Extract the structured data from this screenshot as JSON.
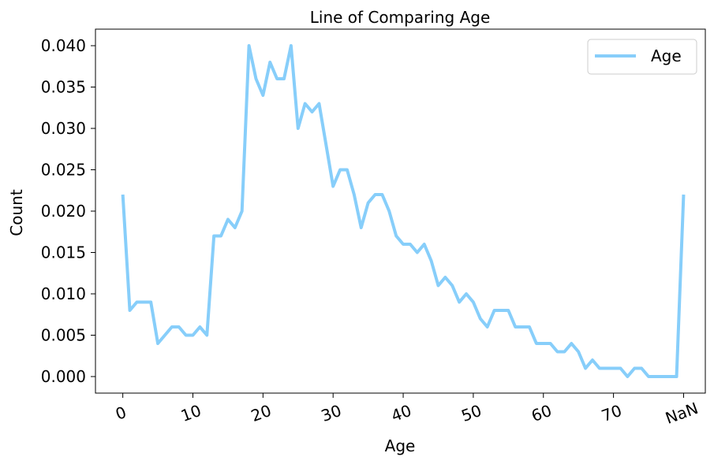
{
  "chart_data": {
    "type": "line",
    "title": "Line of Comparing Age",
    "xlabel": "Age",
    "ylabel": "Count",
    "x_ticks": [
      "0",
      "10",
      "20",
      "30",
      "40",
      "50",
      "60",
      "70",
      "NaN"
    ],
    "y_ticks": [
      "0.000",
      "0.005",
      "0.010",
      "0.015",
      "0.020",
      "0.025",
      "0.030",
      "0.035",
      "0.040"
    ],
    "ylim": [
      -0.002,
      0.042
    ],
    "xlim": [
      -3.9,
      83.1
    ],
    "legend_position": "top-right",
    "grid": false,
    "series": [
      {
        "name": "Age",
        "color": "#87CEFA",
        "x": [
          0,
          1,
          2,
          3,
          4,
          5,
          6,
          7,
          8,
          9,
          10,
          11,
          12,
          13,
          14,
          15,
          16,
          17,
          18,
          19,
          20,
          21,
          22,
          23,
          24,
          25,
          26,
          27,
          28,
          29,
          30,
          31,
          32,
          33,
          34,
          35,
          36,
          37,
          38,
          39,
          40,
          41,
          42,
          43,
          44,
          45,
          46,
          47,
          48,
          49,
          50,
          51,
          52,
          53,
          54,
          55,
          56,
          57,
          58,
          59,
          60,
          61,
          62,
          63,
          64,
          65,
          66,
          67,
          68,
          69,
          70,
          71,
          72,
          73,
          74,
          75,
          76,
          77,
          78,
          79,
          80
        ],
        "x_labels_note": "",
        "values": [
          0.022,
          0.008,
          0.009,
          0.009,
          0.009,
          0.004,
          0.005,
          0.006,
          0.006,
          0.005,
          0.005,
          0.006,
          0.005,
          0.017,
          0.017,
          0.019,
          0.018,
          0.02,
          0.04,
          0.036,
          0.034,
          0.038,
          0.036,
          0.036,
          0.04,
          0.03,
          0.033,
          0.032,
          0.033,
          0.028,
          0.023,
          0.025,
          0.025,
          0.022,
          0.018,
          0.021,
          0.022,
          0.022,
          0.02,
          0.017,
          0.016,
          0.016,
          0.015,
          0.016,
          0.014,
          0.011,
          0.012,
          0.011,
          0.009,
          0.01,
          0.009,
          0.007,
          0.006,
          0.008,
          0.008,
          0.008,
          0.006,
          0.006,
          0.006,
          0.004,
          0.004,
          0.004,
          0.003,
          0.003,
          0.004,
          0.003,
          0.001,
          0.002,
          0.001,
          0.001,
          0.001,
          0.001,
          0.0,
          0.001,
          0.001,
          0.0,
          0.0,
          0.0,
          0.0,
          0.0,
          0.022
        ]
      }
    ]
  }
}
